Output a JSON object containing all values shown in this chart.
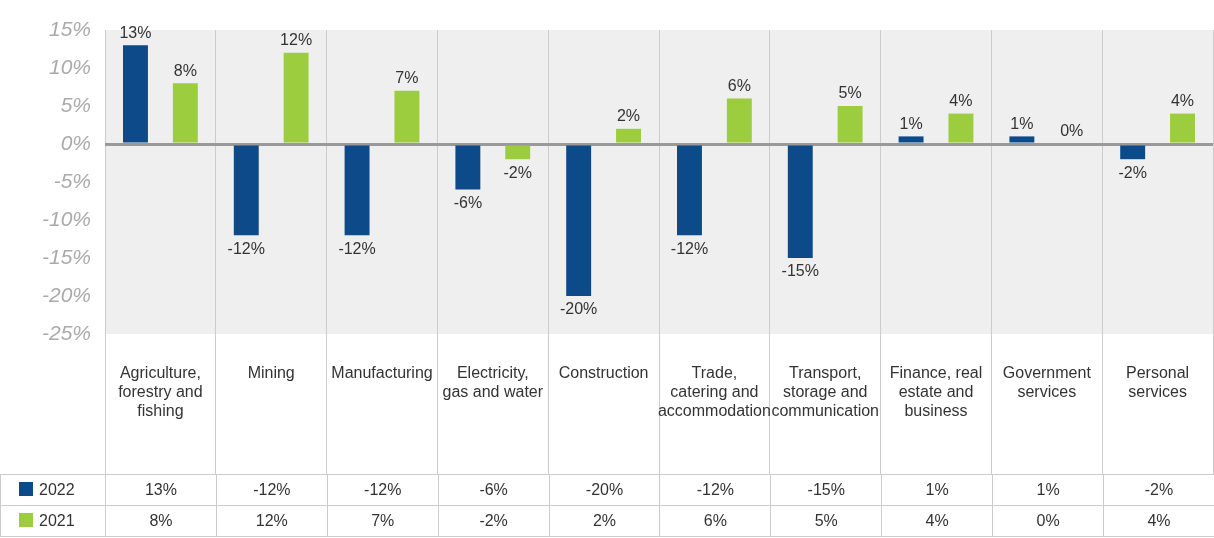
{
  "chart_data": {
    "type": "bar",
    "categories": [
      "Agriculture, forestry and fishing",
      "Mining",
      "Manufacturing",
      "Electricity, gas and water",
      "Construction",
      "Trade, catering and accommodation",
      "Transport, storage and communication",
      "Finance, real estate and business",
      "Government services",
      "Personal services"
    ],
    "series": [
      {
        "name": "2022",
        "color": "#0d4a8a",
        "values": [
          13,
          -12,
          -12,
          -6,
          -20,
          -12,
          -15,
          1,
          1,
          -2
        ],
        "value_labels": [
          "13%",
          "-12%",
          "-12%",
          "-6%",
          "-20%",
          "-12%",
          "-15%",
          "1%",
          "1%",
          "-2%"
        ]
      },
      {
        "name": "2021",
        "color": "#9bcd3f",
        "values": [
          8,
          12,
          7,
          -2,
          2,
          6,
          5,
          4,
          0,
          4
        ],
        "value_labels": [
          "8%",
          "12%",
          "7%",
          "-2%",
          "2%",
          "6%",
          "5%",
          "4%",
          "0%",
          "4%"
        ]
      }
    ],
    "ylim": [
      -25,
      15
    ],
    "yticks": [
      {
        "value": -25,
        "label": "-25%"
      },
      {
        "value": -20,
        "label": "-20%"
      },
      {
        "value": -15,
        "label": "-15%"
      },
      {
        "value": -10,
        "label": "-10%"
      },
      {
        "value": -5,
        "label": "-5%"
      },
      {
        "value": 0,
        "label": "0%"
      },
      {
        "value": 5,
        "label": "5%"
      },
      {
        "value": 10,
        "label": "10%"
      },
      {
        "value": 15,
        "label": "15%"
      }
    ],
    "grid": "x",
    "legend": "bottom left"
  }
}
